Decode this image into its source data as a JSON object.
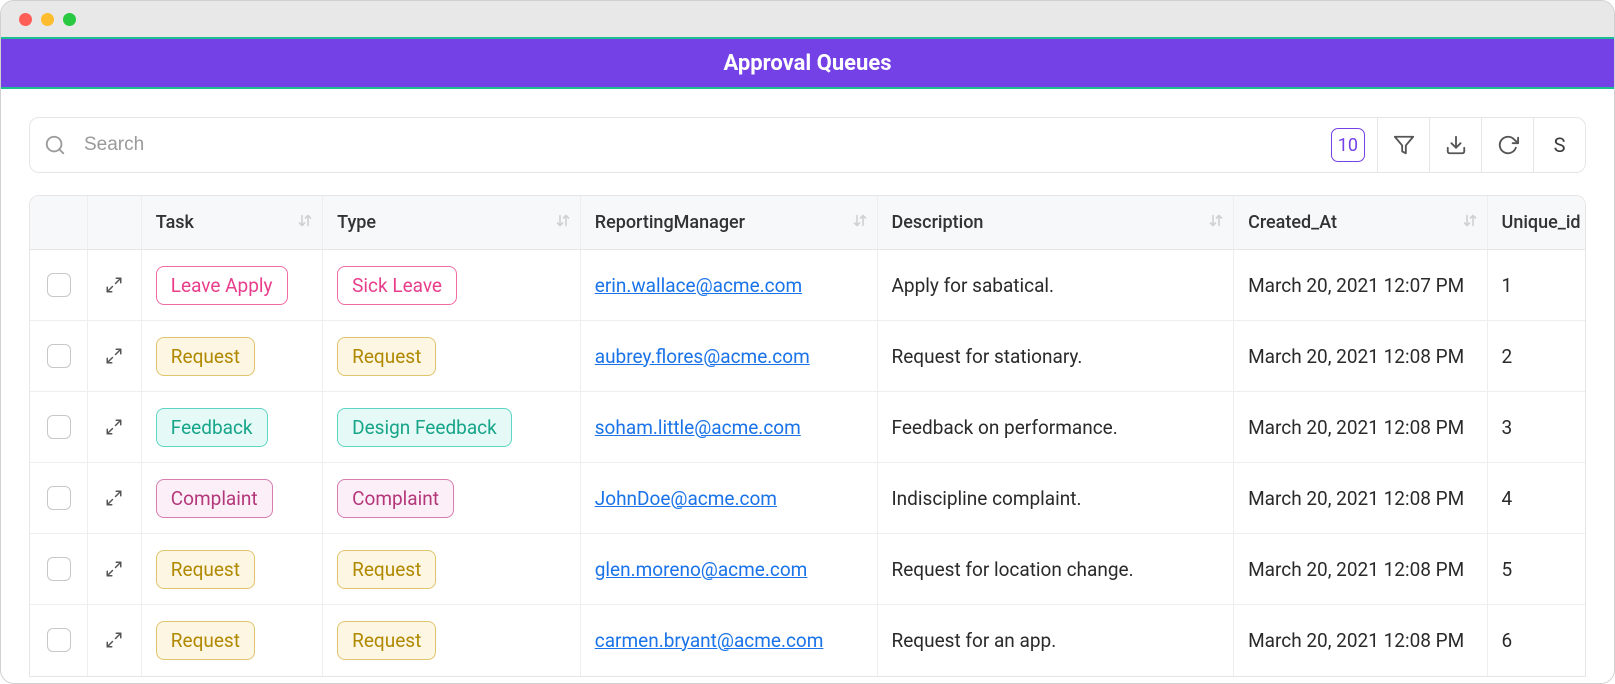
{
  "window": {
    "dots": [
      "#ff5f57",
      "#febc2e",
      "#28c840"
    ]
  },
  "header": {
    "title": "Approval Queues",
    "bg": "#7341e6",
    "accent": "#1bbf8f"
  },
  "toolbar": {
    "search_placeholder": "Search",
    "page_size": "10",
    "page_size_color": "#7341e6",
    "letter_button": "S"
  },
  "table": {
    "columns": [
      {
        "key": "check",
        "label": "",
        "sortable": false
      },
      {
        "key": "expand",
        "label": "",
        "sortable": false
      },
      {
        "key": "task",
        "label": "Task",
        "sortable": true
      },
      {
        "key": "type",
        "label": "Type",
        "sortable": true
      },
      {
        "key": "manager",
        "label": "ReportingManager",
        "sortable": true
      },
      {
        "key": "description",
        "label": "Description",
        "sortable": true
      },
      {
        "key": "created",
        "label": "Created_At",
        "sortable": true
      },
      {
        "key": "uid",
        "label": "Unique_id",
        "sortable": false
      }
    ],
    "tag_styles": {
      "leave_apply": {
        "bg": "#ffffff",
        "border": "#f06ba2",
        "text": "#e83e8c"
      },
      "sick_leave": {
        "bg": "#ffffff",
        "border": "#f06ba2",
        "text": "#e83e8c"
      },
      "request": {
        "bg": "#fdf6e3",
        "border": "#e0c56e",
        "text": "#b08900"
      },
      "feedback": {
        "bg": "#e5f9f6",
        "border": "#5fd6c4",
        "text": "#17a589"
      },
      "design_feedback": {
        "bg": "#e5f9f6",
        "border": "#5fd6c4",
        "text": "#17a589"
      },
      "complaint": {
        "bg": "#fdeff7",
        "border": "#d77db0",
        "text": "#b3377a"
      }
    },
    "rows": [
      {
        "task": {
          "label": "Leave Apply",
          "style": "leave_apply"
        },
        "type": {
          "label": "Sick Leave",
          "style": "sick_leave"
        },
        "manager": "erin.wallace@acme.com",
        "description": "Apply for sabatical.",
        "created": "March 20, 2021 12:07 PM",
        "uid": "1"
      },
      {
        "task": {
          "label": "Request",
          "style": "request"
        },
        "type": {
          "label": "Request",
          "style": "request"
        },
        "manager": "aubrey.flores@acme.com",
        "description": "Request for stationary.",
        "created": "March 20, 2021 12:08 PM",
        "uid": "2"
      },
      {
        "task": {
          "label": "Feedback",
          "style": "feedback"
        },
        "type": {
          "label": "Design Feedback",
          "style": "design_feedback"
        },
        "manager": "soham.little@acme.com",
        "description": "Feedback on performance.",
        "created": "March 20, 2021 12:08 PM",
        "uid": "3"
      },
      {
        "task": {
          "label": "Complaint",
          "style": "complaint"
        },
        "type": {
          "label": "Complaint",
          "style": "complaint"
        },
        "manager": "JohnDoe@acme.com",
        "description": "Indiscipline complaint.",
        "created": "March 20, 2021 12:08 PM",
        "uid": "4"
      },
      {
        "task": {
          "label": "Request",
          "style": "request"
        },
        "type": {
          "label": "Request",
          "style": "request"
        },
        "manager": "glen.moreno@acme.com",
        "description": "Request for location change.",
        "created": "March 20, 2021 12:08 PM",
        "uid": "5"
      },
      {
        "task": {
          "label": "Request",
          "style": "request"
        },
        "type": {
          "label": "Request",
          "style": "request"
        },
        "manager": "carmen.bryant@acme.com",
        "description": "Request for an app.",
        "created": "March 20, 2021 12:08 PM",
        "uid": "6"
      }
    ]
  }
}
